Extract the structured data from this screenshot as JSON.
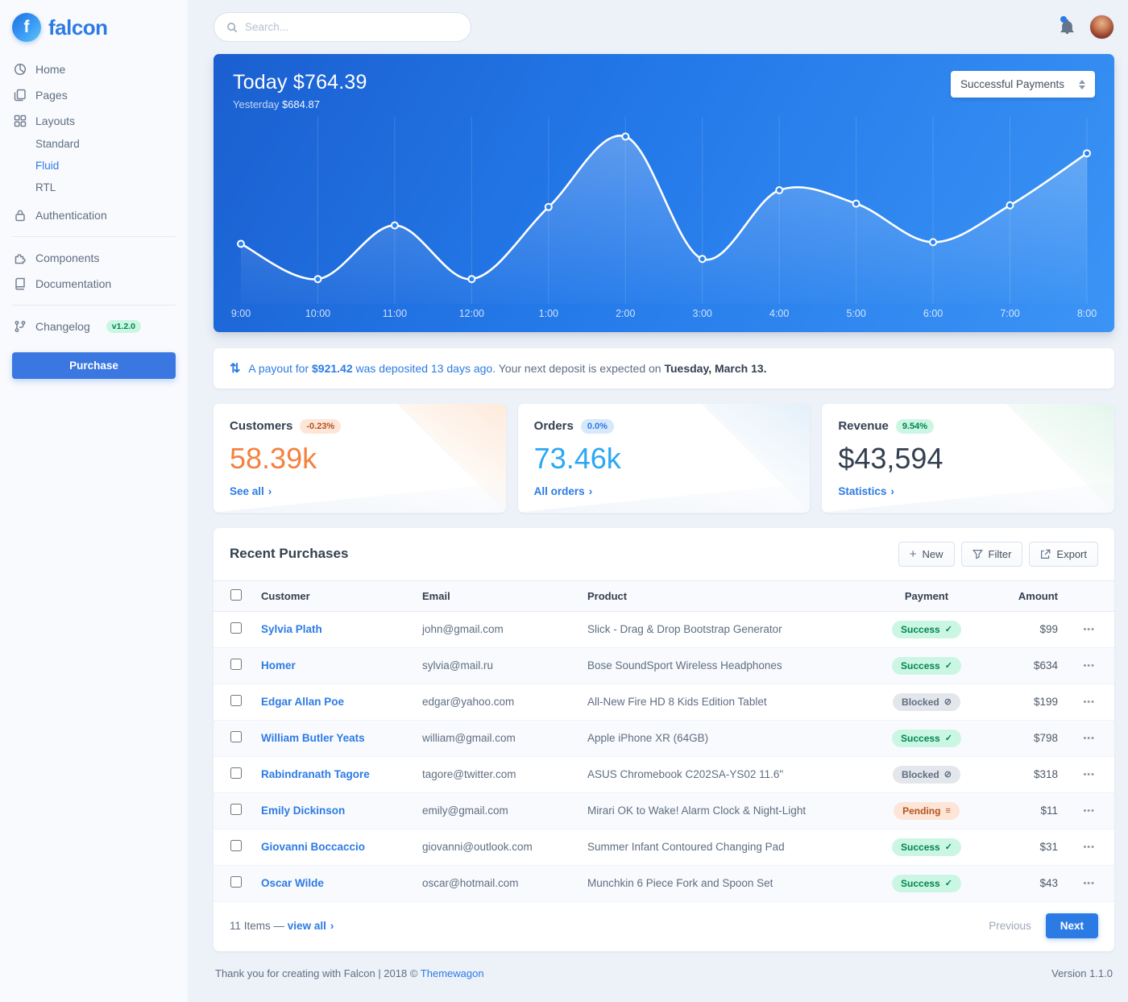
{
  "colors": {
    "primary": "#2c7be5",
    "warning": "#f5803e",
    "info": "#2aa7f4",
    "success_text": "#00864e",
    "success_bg": "#ccf6e4",
    "heading": "#344050",
    "body": "#5e6e82",
    "page_bg": "#edf2f9",
    "hero_gradient_start": "#1a5fd0",
    "hero_gradient_end": "#3b94f5"
  },
  "icons": {
    "payout": "⇅",
    "caret": "›",
    "plus": "+",
    "ellipsis": "•••"
  },
  "status_icons": {
    "success": "✓",
    "blocked": "⊘",
    "pending": "≡"
  },
  "sidebar": {
    "brand": "falcon",
    "brand_initial": "f",
    "items": [
      {
        "label": "Home"
      },
      {
        "label": "Pages"
      },
      {
        "label": "Layouts",
        "children": [
          "Standard",
          "Fluid",
          "RTL"
        ],
        "active_child": "Fluid"
      },
      {
        "label": "Authentication"
      },
      {
        "label": "Components"
      },
      {
        "label": "Documentation"
      },
      {
        "label": "Changelog",
        "badge": "v1.2.0"
      }
    ],
    "purchase_label": "Purchase"
  },
  "topbar": {
    "search_placeholder": "Search..."
  },
  "hero": {
    "today_label": "Today",
    "today_value": "$764.39",
    "yesterday_label": "Yesterday",
    "yesterday_value": "$684.87",
    "select_value": "Successful Payments"
  },
  "chart_data": {
    "type": "line",
    "title": "Today's payments by hour",
    "categories": [
      "9:00",
      "10:00",
      "11:00",
      "12:00",
      "1:00",
      "2:00",
      "3:00",
      "4:00",
      "5:00",
      "6:00",
      "7:00",
      "8:00"
    ],
    "series": [
      {
        "name": "Successful Payments",
        "values": [
          31,
          10,
          42,
          10,
          53,
          95,
          22,
          63,
          55,
          32,
          54,
          85
        ]
      }
    ],
    "ylim": [
      0,
      100
    ],
    "grid": "vertical",
    "legend": "none",
    "line_color": "#ffffff"
  },
  "payout": {
    "lead": "A payout for",
    "amount": "$921.42",
    "deposited": "was deposited 13 days ago",
    "separator": ". ",
    "next_text": "Your next deposit is expected on",
    "next_date": "Tuesday, March 13."
  },
  "stats": [
    {
      "title": "Customers",
      "badge": "-0.23%",
      "value": "58.39k",
      "link": "See all"
    },
    {
      "title": "Orders",
      "badge": "0.0%",
      "value": "73.46k",
      "link": "All orders"
    },
    {
      "title": "Revenue",
      "badge": "9.54%",
      "value": "$43,594",
      "link": "Statistics"
    }
  ],
  "purchases": {
    "title": "Recent Purchases",
    "buttons": [
      "New",
      "Filter",
      "Export"
    ],
    "columns": [
      "Customer",
      "Email",
      "Product",
      "Payment",
      "Amount"
    ],
    "rows": [
      {
        "customer": "Sylvia Plath",
        "email": "john@gmail.com",
        "product": "Slick - Drag & Drop Bootstrap Generator",
        "payment": "Success",
        "status": "success",
        "amount": "$99"
      },
      {
        "customer": "Homer",
        "email": "sylvia@mail.ru",
        "product": "Bose SoundSport Wireless Headphones",
        "payment": "Success",
        "status": "success",
        "amount": "$634"
      },
      {
        "customer": "Edgar Allan Poe",
        "email": "edgar@yahoo.com",
        "product": "All-New Fire HD 8 Kids Edition Tablet",
        "payment": "Blocked",
        "status": "blocked",
        "amount": "$199"
      },
      {
        "customer": "William Butler Yeats",
        "email": "william@gmail.com",
        "product": "Apple iPhone XR (64GB)",
        "payment": "Success",
        "status": "success",
        "amount": "$798"
      },
      {
        "customer": "Rabindranath Tagore",
        "email": "tagore@twitter.com",
        "product": "ASUS Chromebook C202SA-YS02 11.6\"",
        "payment": "Blocked",
        "status": "blocked",
        "amount": "$318"
      },
      {
        "customer": "Emily Dickinson",
        "email": "emily@gmail.com",
        "product": "Mirari OK to Wake! Alarm Clock & Night-Light",
        "payment": "Pending",
        "status": "pending",
        "amount": "$11"
      },
      {
        "customer": "Giovanni Boccaccio",
        "email": "giovanni@outlook.com",
        "product": "Summer Infant Contoured Changing Pad",
        "payment": "Success",
        "status": "success",
        "amount": "$31"
      },
      {
        "customer": "Oscar Wilde",
        "email": "oscar@hotmail.com",
        "product": "Munchkin 6 Piece Fork and Spoon Set",
        "payment": "Success",
        "status": "success",
        "amount": "$43"
      }
    ],
    "footer": {
      "items_text": "11 Items —",
      "view_all": "view all",
      "prev": "Previous",
      "next": "Next"
    }
  },
  "footer": {
    "left": "Thank you for creating with Falcon | 2018 © ",
    "link": "Themewagon",
    "right": "Version 1.1.0"
  }
}
